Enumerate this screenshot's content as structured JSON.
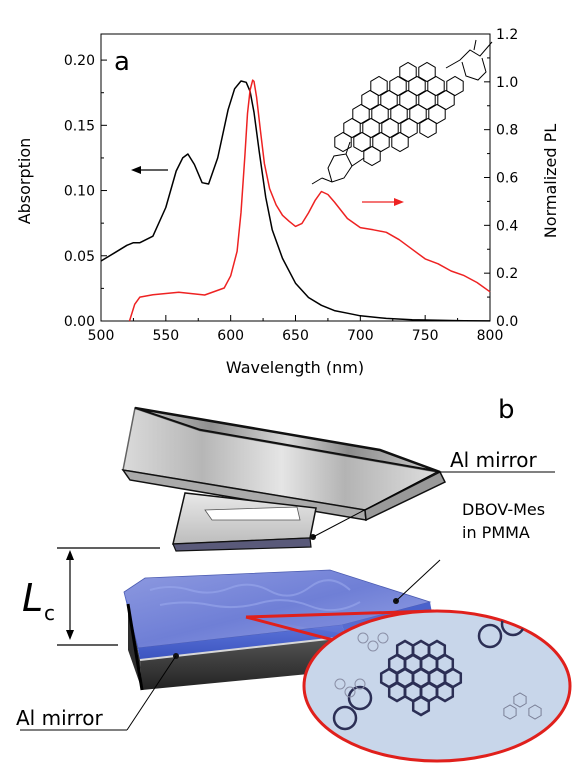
{
  "panel_a": {
    "label": "a",
    "arrow_left_color": "#000000",
    "arrow_right_color": "#ee2222"
  },
  "panel_b": {
    "label": "b",
    "top_mirror_label": "Al mirror",
    "bottom_mirror_label": "Al mirror",
    "film_label_line1": "DBOV-Mes",
    "film_label_line2": "in PMMA",
    "cavity_symbol": "L",
    "cavity_subscript": "c",
    "film_color": "#6f7fd6",
    "inset_border_color": "#e0201c",
    "inset_fill_color": "#c8d6ea"
  },
  "chart_data": {
    "type": "line",
    "xlabel": "Wavelength (nm)",
    "ylabel": "Absorption",
    "y2label": "Normalized PL",
    "xlim": [
      500,
      800
    ],
    "ylim": [
      0,
      0.22
    ],
    "y2lim": [
      0,
      1.2
    ],
    "xticks": [
      500,
      550,
      600,
      650,
      700,
      750,
      800
    ],
    "xtick_labels": [
      "500",
      "550",
      "600",
      "650",
      "700",
      "750",
      "800"
    ],
    "yticks": [
      0,
      0.05,
      0.1,
      0.15,
      0.2
    ],
    "ytick_labels": [
      "0.00",
      "0.05",
      "0.10",
      "0.15",
      "0.20"
    ],
    "y2ticks": [
      0,
      0.2,
      0.4,
      0.6,
      0.8,
      1.0,
      1.2
    ],
    "y2tick_labels": [
      "0.0",
      "0.2",
      "0.4",
      "0.6",
      "0.8",
      "1.0",
      "1.2"
    ],
    "grid": false,
    "series": [
      {
        "color": "#000000",
        "axis": "left",
        "x": [
          500,
          510,
          520,
          525,
          530,
          540,
          550,
          558,
          563,
          567,
          572,
          578,
          583,
          590,
          598,
          603,
          608,
          612,
          615,
          618,
          622,
          627,
          632,
          640,
          650,
          660,
          670,
          680,
          690,
          700,
          720,
          740,
          760,
          780,
          800
        ],
        "y": [
          0.046,
          0.052,
          0.058,
          0.06,
          0.06,
          0.065,
          0.087,
          0.115,
          0.125,
          0.128,
          0.12,
          0.106,
          0.105,
          0.125,
          0.162,
          0.178,
          0.184,
          0.183,
          0.176,
          0.16,
          0.13,
          0.095,
          0.07,
          0.048,
          0.029,
          0.018,
          0.012,
          0.008,
          0.006,
          0.004,
          0.002,
          0.001,
          0.0005,
          0.0002,
          0.0001
        ]
      },
      {
        "color": "#ee2222",
        "axis": "right",
        "x": [
          522,
          526,
          530,
          540,
          560,
          580,
          595,
          600,
          605,
          608,
          611,
          613,
          615,
          617,
          618,
          620,
          623,
          626,
          630,
          635,
          640,
          645,
          650,
          655,
          660,
          665,
          670,
          675,
          680,
          690,
          700,
          710,
          720,
          730,
          740,
          750,
          760,
          770,
          780,
          790,
          800
        ],
        "y": [
          0.0,
          0.07,
          0.1,
          0.11,
          0.12,
          0.12,
          0.14,
          0.18,
          0.28,
          0.45,
          0.7,
          0.88,
          0.97,
          1.0,
          0.99,
          0.93,
          0.8,
          0.67,
          0.56,
          0.48,
          0.43,
          0.41,
          0.4,
          0.42,
          0.46,
          0.5,
          0.53,
          0.52,
          0.5,
          0.44,
          0.4,
          0.38,
          0.36,
          0.33,
          0.3,
          0.27,
          0.25,
          0.21,
          0.18,
          0.15,
          0.12
        ]
      }
    ]
  }
}
